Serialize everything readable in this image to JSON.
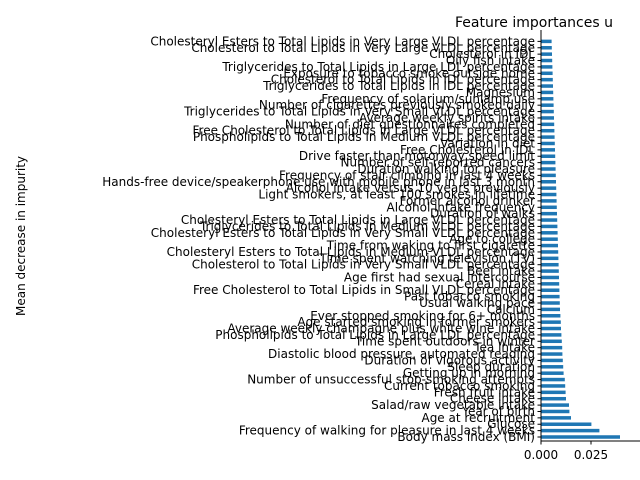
{
  "chart_data": {
    "type": "bar",
    "orientation": "horizontal",
    "title": "Feature importances u",
    "xlabel": "",
    "ylabel": "Mean decrease in impurity",
    "xlim": [
      0,
      0.04
    ],
    "xticks": [
      0.0,
      0.025
    ],
    "xtick_labels": [
      "0.000",
      "0.025"
    ],
    "bar_color": "#1f77b4",
    "grid": false,
    "legend": "none",
    "categories": [
      "Body mass index (BMI)",
      "Frequency of walking for pleasure in last 4 weeks",
      "Glucose",
      "Age at recruitment",
      "Year of birth",
      "Salad/raw vegetable intake",
      "Cheese intake",
      "Fresh fruit intake",
      "Current tobacco smoking",
      "Number of unsuccessful stop-smoking attempts",
      "Getting up in morning",
      "Sleep duration",
      "Duration of vigorous activity",
      "Diastolic blood pressure, automated reading",
      "Tea intake",
      "Time spent outdoors in winter",
      "Phospholipids to Total Lipids in Large LDL percentage",
      "Average weekly champagne plus white wine intake",
      "Age started smoking in former smokers",
      "Ever stopped smoking for 6+ months",
      "Calcium",
      "Usual walking pace",
      "Past tobacco smoking",
      "Free Cholesterol to Total Lipids in Small VLDL percentage",
      "Cereal intake",
      "Age first had sexual intercourse",
      "Beef intake",
      "Cholesterol to Total Lipids in Very Small VLDL percentage",
      "Time spent watching television (TV)",
      "Cholesteryl Esters to Total Lipids in Medium VLDL percentage",
      "Time from waking to first cigarette",
      "Age to college",
      "Cholesteryl Esters to Total Lipids in Very Small VLDL percentage",
      "Triglycerides to Total Lipids in Medium VLDL percentage",
      "Cholesteryl Esters to Total Lipids in Large VLDL percentage",
      "Duration of walks",
      "Alcohol intake frequency",
      "Former alcohol drinker",
      "Light smokers, at least 100 smokes in lifetime",
      "Alcohol intake versus 10 years previously",
      "Hands-free device/speakerphone use with mobile phone in last 3 month",
      "Frequency of stair climbing in last 4 weeks",
      "Duration walking for pleasure",
      "Number of self-reported cancers",
      "Drive faster than motorway speed limit",
      "Free Cholesterol in IDL",
      "Variation in diet",
      "Phospholipids to Total Lipids in Medium VLDL percentage",
      "Free Cholesterol to Total Lipids in Large VLDL percentage",
      "Number of diet questionnaires completed",
      "Average weekly spirits intake",
      "Triglycerides to Total Lipids in Very Small VLDL percentage",
      "Number of cigarettes previously smoked daily",
      "Frequency of solarium/sunlamp use",
      "Magnesium",
      "Triglycerides to Total Lipids in IDL percentage",
      "Cholesterol to Total Lipids in IDL percentage",
      "Exposure to tobacco smoke outside home",
      "Triglycerides to Total Lipids in Large LDL percentage",
      "Oily fish intake",
      "Cholesterol in IDL",
      "Cholesterol to Total Lipids in Very Large VLDL percentage",
      "Cholesteryl Esters to Total Lipids in Very Large VLDL percentage"
    ],
    "values": [
      0.0395,
      0.0292,
      0.0252,
      0.015,
      0.0142,
      0.014,
      0.0125,
      0.0123,
      0.0121,
      0.0119,
      0.0113,
      0.0111,
      0.0109,
      0.0107,
      0.0106,
      0.0104,
      0.0102,
      0.01,
      0.0099,
      0.0097,
      0.0095,
      0.0094,
      0.0093,
      0.0092,
      0.0091,
      0.009,
      0.0089,
      0.0088,
      0.0087,
      0.0086,
      0.0085,
      0.0084,
      0.0083,
      0.0082,
      0.0081,
      0.008,
      0.0079,
      0.0078,
      0.0077,
      0.0076,
      0.0075,
      0.0074,
      0.0073,
      0.0072,
      0.0071,
      0.007,
      0.0069,
      0.0068,
      0.0067,
      0.0066,
      0.0065,
      0.0064,
      0.0063,
      0.0062,
      0.0061,
      0.006,
      0.0059,
      0.0058,
      0.0057,
      0.0056,
      0.0055,
      0.0054,
      0.0053
    ]
  }
}
